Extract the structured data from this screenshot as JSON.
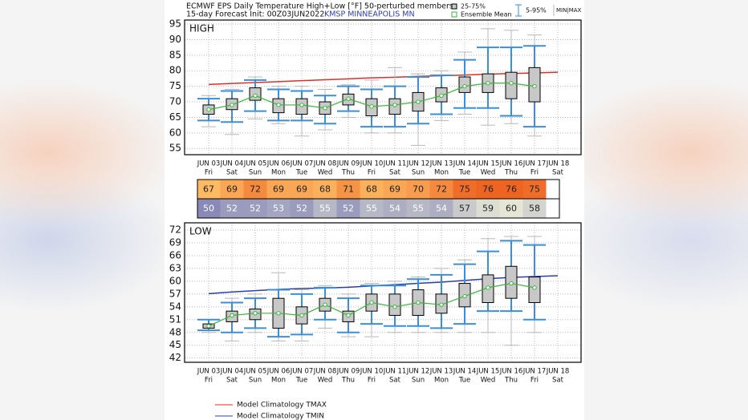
{
  "header": {
    "title": "ECMWF EPS Daily Temperature High+Low [°F] 50-perturbed members",
    "init": "15-day Forecast Init: 00Z03JUN2022",
    "station": "KMSP  MINNEAPOLIS  MN"
  },
  "legend": {
    "box": "25-75%",
    "mean": "Ensemble Mean",
    "whisker": "5-95%",
    "range": "MIN|MAX"
  },
  "chart_data": [
    {
      "type": "box",
      "title": "HIGH",
      "categories": [
        "JUN 03",
        "JUN 04",
        "JUN 05",
        "JUN 06",
        "JUN 07",
        "JUN 08",
        "JUN 09",
        "JUN 10",
        "JUN 11",
        "JUN 12",
        "JUN 13",
        "JUN 14",
        "JUN 15",
        "JUN 16",
        "JUN 17",
        "JUN 18"
      ],
      "weekdays": [
        "Fri",
        "Sat",
        "Sun",
        "Mon",
        "Tue",
        "Wed",
        "Thu",
        "Fri",
        "Sat",
        "Sun",
        "Mon",
        "Tue",
        "Wed",
        "Thu",
        "Fri",
        "Sat"
      ],
      "ylim": [
        53,
        96.3
      ],
      "yticks": [
        55,
        60,
        65,
        70,
        75,
        80,
        85,
        90,
        95
      ],
      "grid": true,
      "boxes": {
        "q1": [
          66,
          67.5,
          70.5,
          66.5,
          66,
          66,
          69,
          65.5,
          66,
          67,
          70,
          73,
          73,
          71,
          70,
          null
        ],
        "q3": [
          69,
          71,
          74.5,
          71,
          71,
          70,
          72.5,
          71,
          71,
          73,
          74.5,
          78,
          79,
          79.5,
          81,
          null
        ],
        "mean": [
          67.5,
          69,
          72,
          69,
          69,
          68,
          71,
          68.5,
          69,
          70,
          72,
          75,
          76,
          76,
          75,
          null
        ],
        "p5": [
          64,
          63.5,
          67,
          64,
          64,
          63,
          67,
          62,
          62,
          63,
          66,
          68,
          68,
          65.5,
          62,
          null
        ],
        "p95": [
          71,
          73.5,
          77,
          74,
          73.5,
          72,
          75,
          74,
          75,
          78,
          78.5,
          83.5,
          87.5,
          87.5,
          88,
          null
        ],
        "min": [
          62,
          59.5,
          64.5,
          63,
          59,
          61,
          65,
          60,
          60,
          56,
          64,
          66,
          62.5,
          63,
          59,
          null
        ],
        "max": [
          72,
          74,
          78,
          75,
          75,
          74,
          75.5,
          77,
          81,
          79,
          80,
          86,
          93.5,
          93,
          91.5,
          null
        ]
      },
      "box_color": "#c8c8c8",
      "mean_color": "#3ab53a",
      "whisker_color": "#3a8fd8",
      "range_color": "#b8b8b8",
      "series": [
        {
          "name": "Model Climatology TMAX",
          "color": "#d9312b",
          "values": [
            75.6,
            75.9,
            76.2,
            76.5,
            76.8,
            77.1,
            77.4,
            77.7,
            77.9,
            78.2,
            78.4,
            78.6,
            78.9,
            79.1,
            79.3,
            79.5
          ]
        }
      ]
    },
    {
      "type": "box",
      "title": "LOW",
      "categories": [
        "JUN 03",
        "JUN 04",
        "JUN 05",
        "JUN 06",
        "JUN 07",
        "JUN 08",
        "JUN 09",
        "JUN 10",
        "JUN 11",
        "JUN 12",
        "JUN 13",
        "JUN 14",
        "JUN 15",
        "JUN 16",
        "JUN 17",
        "JUN 18"
      ],
      "weekdays": [
        "Fri",
        "Sat",
        "Sun",
        "Mon",
        "Tue",
        "Wed",
        "Thu",
        "Fri",
        "Sat",
        "Sun",
        "Mon",
        "Tue",
        "Wed",
        "Thu",
        "Fri",
        "Sat"
      ],
      "ylim": [
        41,
        73.7
      ],
      "yticks": [
        42,
        45,
        48,
        51,
        54,
        57,
        60,
        63,
        66,
        69,
        72
      ],
      "grid": true,
      "boxes": {
        "q1": [
          49,
          50.5,
          51,
          49,
          50,
          53,
          50.5,
          53,
          52,
          52,
          52.5,
          54,
          55,
          56,
          55,
          null
        ],
        "q3": [
          50,
          53,
          53.5,
          56,
          54,
          56,
          53,
          57,
          57,
          58,
          57,
          59.5,
          61.5,
          63.5,
          61,
          null
        ],
        "mean": [
          49.5,
          52,
          52.5,
          52.5,
          52,
          54.5,
          52,
          55,
          54,
          55,
          54.5,
          56.5,
          58.5,
          59.5,
          58.5,
          null
        ],
        "p5": [
          48.5,
          48,
          49,
          47,
          47.5,
          51,
          48,
          50,
          49.5,
          49.5,
          49,
          50,
          53,
          53,
          51,
          null
        ],
        "p95": [
          51,
          55,
          56,
          58,
          57,
          58.5,
          56,
          59,
          59,
          60.5,
          61.5,
          64,
          67,
          69.5,
          68.5,
          null
        ],
        "min": [
          48,
          46,
          48,
          46,
          46,
          49,
          47,
          47,
          48,
          48,
          48,
          48,
          48,
          45,
          48,
          null
        ],
        "max": [
          51,
          56,
          57,
          62,
          58,
          59,
          57,
          59.5,
          60,
          61,
          63,
          65,
          70,
          70.5,
          70.5,
          null
        ]
      },
      "box_color": "#c8c8c8",
      "mean_color": "#3ab53a",
      "whisker_color": "#3a8fd8",
      "range_color": "#b8b8b8",
      "series": [
        {
          "name": "Model Climatology TMIN",
          "color": "#2b3fb0",
          "values": [
            57.1,
            57.5,
            57.8,
            58.1,
            58.3,
            58.4,
            58.6,
            58.9,
            59.2,
            59.5,
            59.8,
            60.2,
            60.6,
            60.9,
            61.1,
            61.3
          ]
        }
      ]
    }
  ],
  "table": {
    "high": [
      67,
      69,
      72,
      69,
      69,
      68,
      71,
      68,
      69,
      70,
      72,
      75,
      76,
      76,
      75
    ],
    "low": [
      50,
      52,
      52,
      53,
      52,
      55,
      52,
      55,
      54,
      55,
      54,
      57,
      59,
      60,
      58
    ]
  }
}
